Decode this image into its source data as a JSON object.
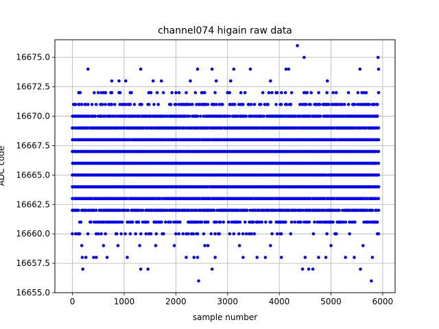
{
  "chart_data": {
    "type": "scatter",
    "title": "channel074 higain raw data",
    "xlabel": "sample number",
    "ylabel": "ADC code",
    "xlim": [
      -340,
      6240
    ],
    "ylim": [
      16655.0,
      16676.5
    ],
    "x_ticks": [
      0,
      1000,
      2000,
      3000,
      4000,
      5000,
      6000
    ],
    "x_tick_labels": [
      "0",
      "1000",
      "2000",
      "3000",
      "4000",
      "5000",
      "6000"
    ],
    "y_ticks": [
      16655.0,
      16657.5,
      16660.0,
      16662.5,
      16665.0,
      16667.5,
      16670.0,
      16672.5,
      16675.0
    ],
    "y_tick_labels": [
      "16655.0",
      "16657.5",
      "16660.0",
      "16662.5",
      "16665.0",
      "16667.5",
      "16670.0",
      "16672.5",
      "16675.0"
    ],
    "grid": true,
    "marker_color": "#0000ff",
    "sample_range": [
      0,
      5920
    ],
    "levels": [
      {
        "y": 16664,
        "density": 0.99
      },
      {
        "y": 16665,
        "density": 0.99
      },
      {
        "y": 16666,
        "density": 0.99
      },
      {
        "y": 16667,
        "density": 0.99
      },
      {
        "y": 16668,
        "density": 0.98
      },
      {
        "y": 16669,
        "density": 0.95
      },
      {
        "y": 16663,
        "density": 0.95
      },
      {
        "y": 16670,
        "density": 0.85
      },
      {
        "y": 16662,
        "density": 0.8
      },
      {
        "y": 16671,
        "density": 0.45
      },
      {
        "y": 16661,
        "density": 0.45
      },
      {
        "y": 16672,
        "density": 0.18
      },
      {
        "y": 16660,
        "density": 0.18
      }
    ],
    "outliers": [
      {
        "x": 150,
        "y": 16672
      },
      {
        "x": 300,
        "y": 16674
      },
      {
        "x": 760,
        "y": 16673
      },
      {
        "x": 900,
        "y": 16673
      },
      {
        "x": 1030,
        "y": 16673
      },
      {
        "x": 1320,
        "y": 16674
      },
      {
        "x": 1560,
        "y": 16673
      },
      {
        "x": 1720,
        "y": 16673
      },
      {
        "x": 2280,
        "y": 16673
      },
      {
        "x": 2420,
        "y": 16674
      },
      {
        "x": 2700,
        "y": 16674
      },
      {
        "x": 2780,
        "y": 16673
      },
      {
        "x": 3060,
        "y": 16673
      },
      {
        "x": 3120,
        "y": 16674
      },
      {
        "x": 3440,
        "y": 16674
      },
      {
        "x": 3830,
        "y": 16673
      },
      {
        "x": 4130,
        "y": 16674
      },
      {
        "x": 4180,
        "y": 16674
      },
      {
        "x": 4350,
        "y": 16676
      },
      {
        "x": 4480,
        "y": 16675
      },
      {
        "x": 4930,
        "y": 16673
      },
      {
        "x": 5560,
        "y": 16674
      },
      {
        "x": 5910,
        "y": 16675
      },
      {
        "x": 5920,
        "y": 16674
      },
      {
        "x": 180,
        "y": 16659
      },
      {
        "x": 190,
        "y": 16658
      },
      {
        "x": 200,
        "y": 16657
      },
      {
        "x": 260,
        "y": 16658
      },
      {
        "x": 410,
        "y": 16658
      },
      {
        "x": 460,
        "y": 16658
      },
      {
        "x": 600,
        "y": 16659
      },
      {
        "x": 670,
        "y": 16658
      },
      {
        "x": 880,
        "y": 16659
      },
      {
        "x": 1060,
        "y": 16658
      },
      {
        "x": 1300,
        "y": 16659
      },
      {
        "x": 1320,
        "y": 16657
      },
      {
        "x": 1460,
        "y": 16657
      },
      {
        "x": 1610,
        "y": 16659
      },
      {
        "x": 1970,
        "y": 16659
      },
      {
        "x": 2200,
        "y": 16658
      },
      {
        "x": 2350,
        "y": 16658
      },
      {
        "x": 2420,
        "y": 16658
      },
      {
        "x": 2440,
        "y": 16656
      },
      {
        "x": 2560,
        "y": 16659
      },
      {
        "x": 2620,
        "y": 16659
      },
      {
        "x": 2700,
        "y": 16657
      },
      {
        "x": 2760,
        "y": 16658
      },
      {
        "x": 3230,
        "y": 16659
      },
      {
        "x": 3300,
        "y": 16658
      },
      {
        "x": 3570,
        "y": 16658
      },
      {
        "x": 3730,
        "y": 16658
      },
      {
        "x": 3830,
        "y": 16659
      },
      {
        "x": 4040,
        "y": 16658
      },
      {
        "x": 4450,
        "y": 16657
      },
      {
        "x": 4500,
        "y": 16658
      },
      {
        "x": 4570,
        "y": 16657
      },
      {
        "x": 4650,
        "y": 16657
      },
      {
        "x": 4760,
        "y": 16658
      },
      {
        "x": 4900,
        "y": 16658
      },
      {
        "x": 5000,
        "y": 16659
      },
      {
        "x": 5280,
        "y": 16658
      },
      {
        "x": 5450,
        "y": 16658
      },
      {
        "x": 5570,
        "y": 16657
      },
      {
        "x": 5620,
        "y": 16659
      },
      {
        "x": 5780,
        "y": 16656
      },
      {
        "x": 5800,
        "y": 16658
      }
    ]
  }
}
